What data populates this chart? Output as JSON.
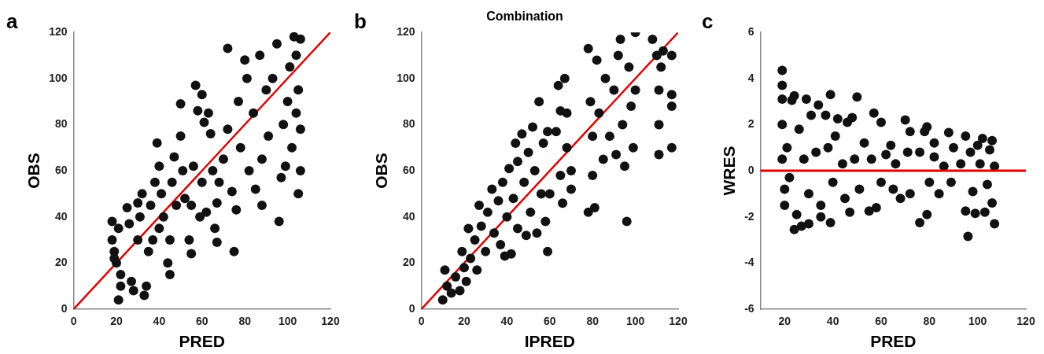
{
  "chart_data": [
    {
      "type": "scatter",
      "xlabel": "PRED",
      "ylabel": "OBS",
      "xlim": [
        0,
        120
      ],
      "ylim": [
        0,
        120
      ],
      "xticks": [
        0,
        20,
        40,
        60,
        80,
        100,
        120
      ],
      "yticks": [
        0,
        20,
        40,
        60,
        80,
        100,
        120
      ],
      "grid": false,
      "legend": false,
      "annotations": [
        "a"
      ],
      "series": [
        {
          "marker": "circle",
          "color": "#111111",
          "x": [
            18,
            18,
            19,
            20,
            21,
            22,
            21,
            22,
            19,
            25,
            26,
            27,
            28,
            30,
            30,
            31,
            32,
            33,
            34,
            35,
            36,
            37,
            38,
            39,
            40,
            40,
            41,
            42,
            44,
            45,
            45,
            46,
            47,
            48,
            50,
            50,
            51,
            52,
            54,
            55,
            55,
            56,
            57,
            58,
            59,
            60,
            60,
            61,
            62,
            63,
            64,
            65,
            66,
            67,
            67,
            68,
            70,
            72,
            72,
            74,
            75,
            76,
            77,
            78,
            80,
            81,
            82,
            84,
            85,
            87,
            88,
            88,
            90,
            91,
            93,
            95,
            96,
            97,
            98,
            99,
            100,
            101,
            102,
            103,
            104,
            104,
            105,
            105,
            106,
            106,
            106
          ],
          "values": [
            38,
            30,
            25,
            20,
            35,
            15,
            4,
            10,
            22,
            44,
            37,
            12,
            8,
            30,
            46,
            40,
            50,
            6,
            10,
            25,
            45,
            30,
            55,
            72,
            35,
            62,
            50,
            40,
            20,
            15,
            30,
            55,
            66,
            45,
            89,
            75,
            60,
            48,
            30,
            24,
            45,
            62,
            97,
            86,
            40,
            93,
            55,
            81,
            42,
            85,
            76,
            60,
            35,
            46,
            29,
            55,
            65,
            113,
            78,
            51,
            25,
            43,
            90,
            70,
            108,
            100,
            60,
            85,
            52,
            110,
            65,
            45,
            95,
            75,
            100,
            115,
            38,
            57,
            80,
            62,
            90,
            105,
            70,
            118,
            85,
            110,
            50,
            95,
            60,
            117,
            78
          ]
        },
        {
          "type": "line",
          "color": "#e00000",
          "x": [
            0,
            120
          ],
          "values": [
            0,
            120
          ]
        }
      ]
    },
    {
      "type": "scatter",
      "title": "Combination",
      "xlabel": "IPRED",
      "ylabel": "OBS",
      "xlim": [
        0,
        120
      ],
      "ylim": [
        0,
        120
      ],
      "xticks": [
        0,
        20,
        40,
        60,
        80,
        100,
        120
      ],
      "yticks": [
        0,
        20,
        40,
        60,
        80,
        100,
        120
      ],
      "grid": false,
      "legend": false,
      "annotations": [
        "b"
      ],
      "series": [
        {
          "marker": "circle",
          "color": "#111111",
          "x": [
            10,
            11,
            12,
            14,
            16,
            18,
            19,
            20,
            21,
            22,
            23,
            25,
            26,
            27,
            28,
            30,
            31,
            33,
            34,
            36,
            37,
            38,
            39,
            40,
            41,
            42,
            43,
            44,
            45,
            45,
            47,
            48,
            49,
            50,
            51,
            52,
            53,
            54,
            55,
            56,
            57,
            58,
            59,
            59,
            60,
            63,
            64,
            65,
            65,
            66,
            67,
            68,
            68,
            70,
            70,
            78,
            78,
            79,
            80,
            80,
            81,
            82,
            83,
            85,
            86,
            88,
            90,
            91,
            92,
            93,
            94,
            95,
            96,
            97,
            98,
            99,
            100,
            100,
            108,
            110,
            111,
            111,
            111,
            112,
            113,
            117,
            117,
            117,
            117
          ],
          "values": [
            4,
            17,
            10,
            7,
            14,
            8,
            25,
            18,
            12,
            35,
            22,
            30,
            17,
            45,
            36,
            25,
            42,
            52,
            33,
            47,
            28,
            55,
            23,
            40,
            61,
            24,
            48,
            72,
            35,
            64,
            76,
            55,
            32,
            68,
            42,
            79,
            60,
            33,
            90,
            50,
            72,
            38,
            25,
            77,
            50,
            77,
            97,
            86,
            58,
            46,
            100,
            70,
            85,
            60,
            52,
            42,
            113,
            90,
            58,
            75,
            44,
            108,
            85,
            65,
            100,
            75,
            95,
            67,
            110,
            117,
            80,
            62,
            38,
            105,
            88,
            70,
            120,
            95,
            117,
            110,
            67,
            80,
            95,
            105,
            112,
            70,
            88,
            110,
            93
          ]
        },
        {
          "type": "line",
          "color": "#e00000",
          "x": [
            0,
            120
          ],
          "values": [
            0,
            120
          ]
        }
      ]
    },
    {
      "type": "scatter",
      "xlabel": "PRED",
      "ylabel": "WRES",
      "xlim": [
        10,
        120
      ],
      "ylim": [
        -6,
        6
      ],
      "xticks": [
        20,
        40,
        60,
        80,
        100,
        120
      ],
      "yticks": [
        -6,
        -4,
        -2,
        0,
        2,
        4,
        6
      ],
      "grid": false,
      "legend": false,
      "annotations": [
        "c"
      ],
      "ref_lines": [
        {
          "axis": "y",
          "value": 0,
          "color": "#e00000"
        }
      ],
      "series": [
        {
          "marker": "circle",
          "color": "#111111",
          "x": [
            19,
            19,
            19,
            19,
            19,
            20,
            20,
            21,
            22,
            23,
            24,
            24,
            25,
            26,
            27,
            28,
            29,
            30,
            30,
            31,
            33,
            34,
            35,
            35,
            37,
            38,
            39,
            39,
            40,
            41,
            42,
            44,
            45,
            46,
            47,
            48,
            49,
            50,
            51,
            53,
            55,
            56,
            57,
            58,
            60,
            60,
            62,
            64,
            65,
            66,
            68,
            70,
            71,
            72,
            72,
            76,
            76,
            78,
            79,
            79,
            80,
            82,
            82,
            84,
            86,
            88,
            89,
            90,
            93,
            95,
            95,
            96,
            97,
            98,
            99,
            100,
            101,
            102,
            103,
            104,
            105,
            106,
            106,
            107,
            107
          ],
          "values": [
            4.35,
            3.7,
            3.1,
            2.0,
            0.5,
            -0.8,
            -1.5,
            1.0,
            -0.3,
            3.05,
            -2.55,
            3.25,
            -1.9,
            1.8,
            -2.4,
            0.5,
            3.1,
            -2.3,
            -1.0,
            2.4,
            0.8,
            2.85,
            -1.5,
            -2.0,
            2.4,
            1.0,
            3.3,
            -2.25,
            -0.5,
            1.5,
            2.25,
            0.3,
            -1.2,
            2.1,
            -1.8,
            2.3,
            0.5,
            3.2,
            -0.8,
            1.2,
            -1.75,
            0.5,
            2.5,
            -1.6,
            2.1,
            -0.5,
            0.7,
            1.1,
            -0.8,
            0.3,
            -1.2,
            2.2,
            0.8,
            1.7,
            -1.0,
            -2.25,
            0.8,
            1.7,
            1.9,
            -1.9,
            -0.5,
            0.6,
            1.2,
            -1.0,
            0.2,
            1.65,
            -0.5,
            1.0,
            0.3,
            -1.75,
            1.5,
            -2.85,
            0.8,
            -0.9,
            -1.85,
            1.1,
            0.3,
            1.4,
            -1.8,
            -0.6,
            0.9,
            -1.4,
            1.3,
            -2.3,
            0.2
          ]
        }
      ]
    }
  ]
}
